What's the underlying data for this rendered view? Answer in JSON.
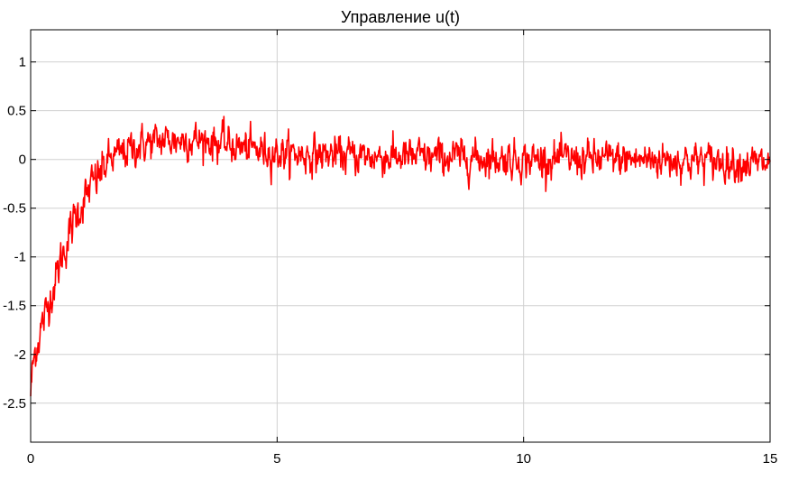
{
  "chart_data": {
    "type": "line",
    "title": "Управление u(t)",
    "xlabel": "",
    "ylabel": "",
    "xlim": [
      0,
      15
    ],
    "ylim": [
      -2.9,
      1.33
    ],
    "x_ticks": [
      0,
      5,
      10,
      15
    ],
    "y_ticks": [
      -2.5,
      -2,
      -1.5,
      -1,
      -0.5,
      0,
      0.5,
      1
    ],
    "x_tick_labels": [
      "0",
      "5",
      "10",
      "15"
    ],
    "y_tick_labels": [
      "-2.5",
      "-2",
      "-1.5",
      "-1",
      "-0.5",
      "0",
      "0.5",
      "1"
    ],
    "grid": true,
    "legend": "none",
    "background": "#ffffff",
    "grid_color": "#d0d0d0",
    "line_color": "#ff0000",
    "series": [
      {
        "noisy": true,
        "x": [
          0,
          0.05,
          0.1,
          0.2,
          0.3,
          0.4,
          0.5,
          0.6,
          0.7,
          0.8,
          0.9,
          1.0,
          1.2,
          1.4,
          1.6,
          1.8,
          2.0,
          2.25,
          2.5,
          2.75,
          3.0,
          3.25,
          3.5,
          3.75,
          4.0,
          4.5,
          5.0,
          5.5,
          6.0,
          7.0,
          8.0,
          9.0,
          10.0,
          11.0,
          12.0,
          13.0,
          14.0,
          15.0
        ],
        "y": [
          -2.4,
          -2.1,
          -1.95,
          -1.75,
          -1.6,
          -1.4,
          -1.25,
          -1.05,
          -0.9,
          -0.75,
          -0.6,
          -0.5,
          -0.3,
          -0.15,
          0.0,
          0.05,
          0.1,
          0.15,
          0.18,
          0.2,
          0.2,
          0.2,
          0.2,
          0.18,
          0.15,
          0.1,
          0.07,
          0.05,
          0.05,
          0.03,
          0.02,
          0.02,
          0.0,
          0.0,
          0.0,
          0.0,
          -0.02,
          -0.05
        ]
      }
    ]
  }
}
